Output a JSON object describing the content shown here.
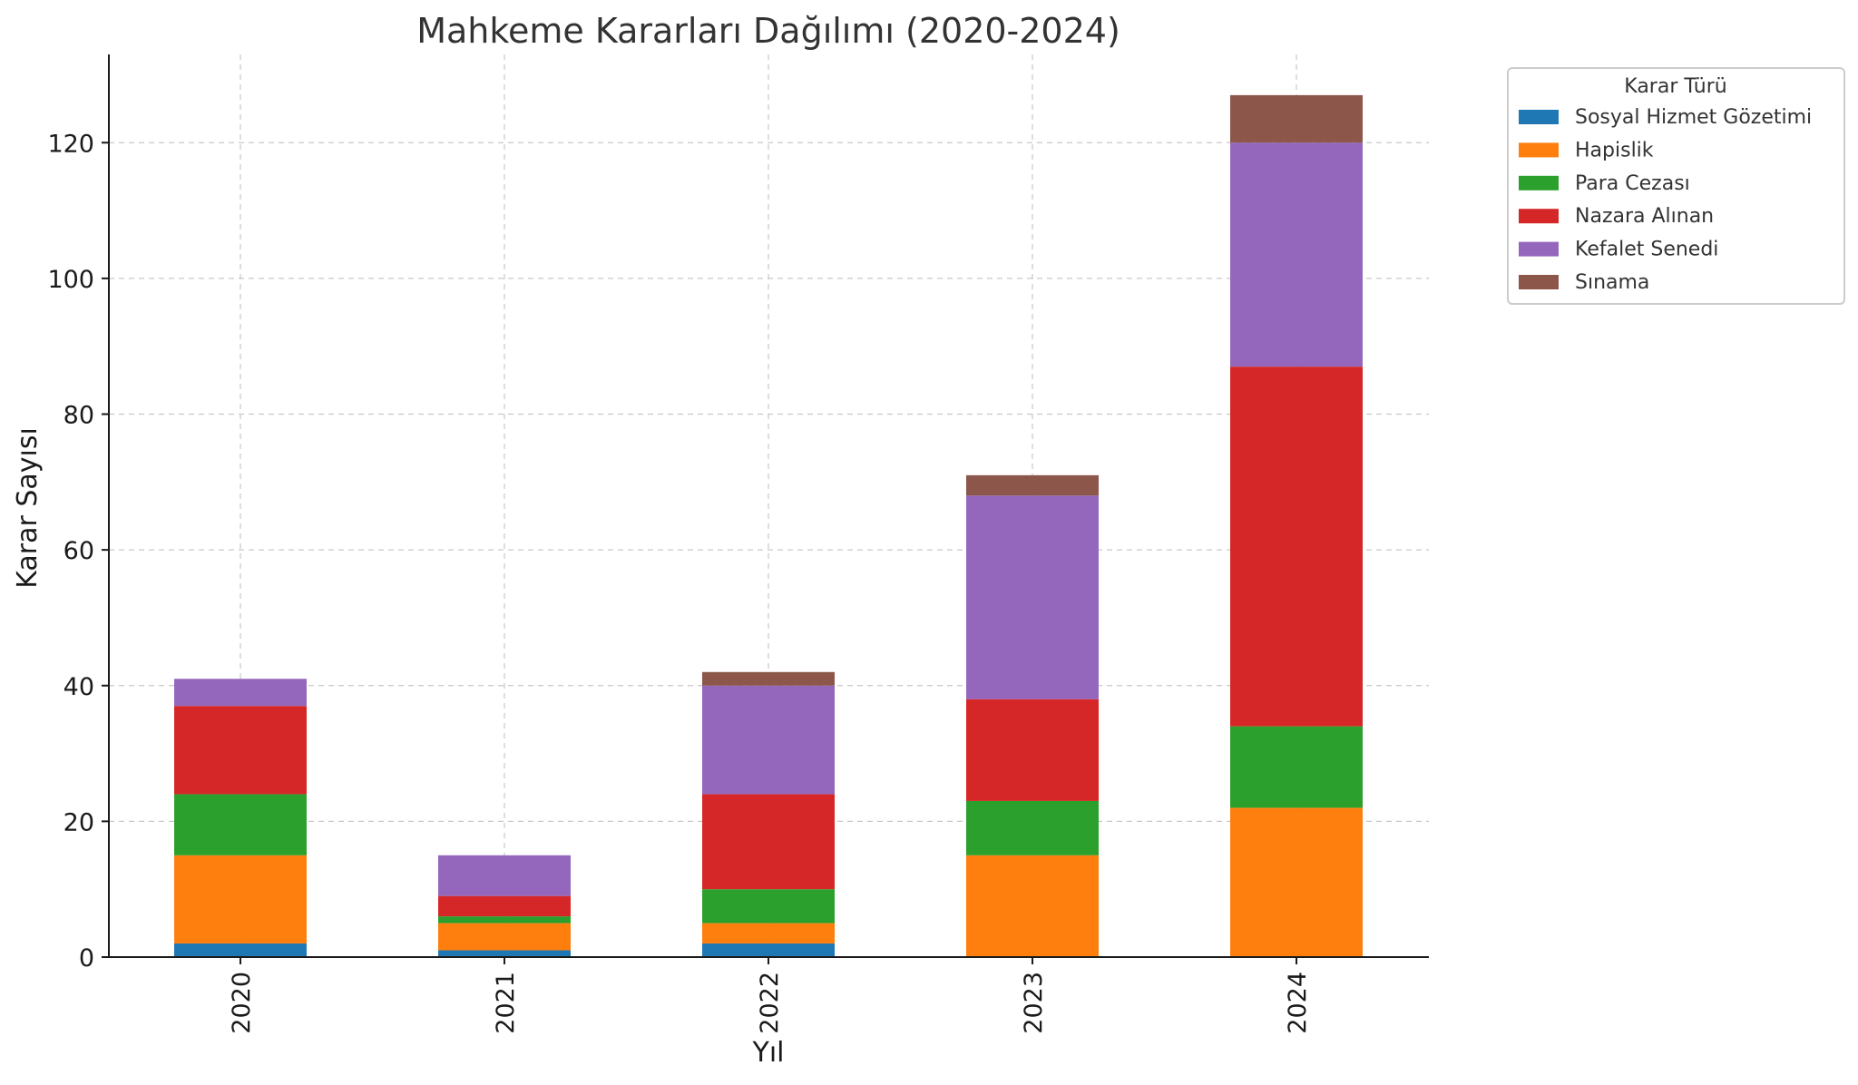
{
  "chart_data": {
    "type": "bar",
    "stacked": true,
    "title": "Mahkeme Kararları Dağılımı (2020-2024)",
    "xlabel": "Yıl",
    "ylabel": "Karar Sayısı",
    "categories": [
      "2020",
      "2021",
      "2022",
      "2023",
      "2024"
    ],
    "ylim": [
      0,
      133
    ],
    "yticks": [
      0,
      20,
      40,
      60,
      80,
      100,
      120
    ],
    "grid": true,
    "legend": {
      "title": "Karar Türü",
      "placement": "outside-top-right"
    },
    "series": [
      {
        "name": "Sosyal Hizmet Gözetimi",
        "color": "#1f77b4",
        "values": [
          2,
          1,
          2,
          0,
          0
        ]
      },
      {
        "name": "Hapislik",
        "color": "#ff7f0e",
        "values": [
          13,
          4,
          3,
          15,
          22
        ]
      },
      {
        "name": "Para Cezası",
        "color": "#2ca02c",
        "values": [
          9,
          1,
          5,
          8,
          12
        ]
      },
      {
        "name": "Nazara Alınan",
        "color": "#d62728",
        "values": [
          13,
          3,
          14,
          15,
          53
        ]
      },
      {
        "name": "Kefalet Senedi",
        "color": "#9467bd",
        "values": [
          4,
          6,
          16,
          30,
          33
        ]
      },
      {
        "name": "Sınama",
        "color": "#8c564b",
        "values": [
          0,
          0,
          2,
          3,
          7
        ]
      }
    ]
  }
}
